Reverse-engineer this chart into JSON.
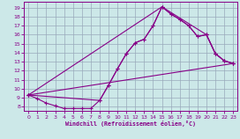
{
  "bg_color": "#cce8e8",
  "line_color": "#880088",
  "grid_color": "#99aabb",
  "xlabel": "Windchill (Refroidissement éolien,°C)",
  "xlim": [
    -0.5,
    23.5
  ],
  "ylim": [
    7.5,
    19.7
  ],
  "xticks": [
    0,
    1,
    2,
    3,
    4,
    5,
    6,
    7,
    8,
    9,
    10,
    11,
    12,
    13,
    14,
    15,
    16,
    17,
    18,
    19,
    20,
    21,
    22,
    23
  ],
  "yticks": [
    8,
    9,
    10,
    11,
    12,
    13,
    14,
    15,
    16,
    17,
    18,
    19
  ],
  "line1": {
    "x": [
      0,
      1,
      2,
      3,
      4,
      5,
      6,
      7,
      8,
      9,
      10,
      11,
      12,
      13,
      14,
      15,
      16,
      17,
      18,
      19,
      20,
      21,
      22,
      23
    ],
    "y": [
      9.3,
      8.9,
      8.4,
      8.1,
      7.8,
      7.8,
      7.8,
      7.8,
      8.7,
      10.4,
      12.2,
      13.9,
      15.1,
      15.5,
      17.0,
      19.1,
      18.3,
      17.7,
      17.0,
      15.8,
      16.0,
      13.9,
      13.1,
      12.8
    ]
  },
  "line2": {
    "x": [
      0,
      15,
      16,
      17,
      18,
      19,
      20,
      21,
      22,
      23
    ],
    "y": [
      9.3,
      19.1,
      18.3,
      17.7,
      17.0,
      15.8,
      16.0,
      13.9,
      13.1,
      12.8
    ]
  },
  "line3": {
    "x": [
      0,
      8,
      9,
      10,
      11,
      12,
      13,
      14,
      15,
      20,
      21,
      22,
      23
    ],
    "y": [
      9.3,
      8.7,
      10.4,
      12.2,
      13.9,
      15.1,
      15.5,
      17.0,
      19.1,
      16.0,
      13.9,
      13.1,
      12.8
    ]
  },
  "line4": {
    "x": [
      0,
      23
    ],
    "y": [
      9.3,
      12.8
    ]
  }
}
